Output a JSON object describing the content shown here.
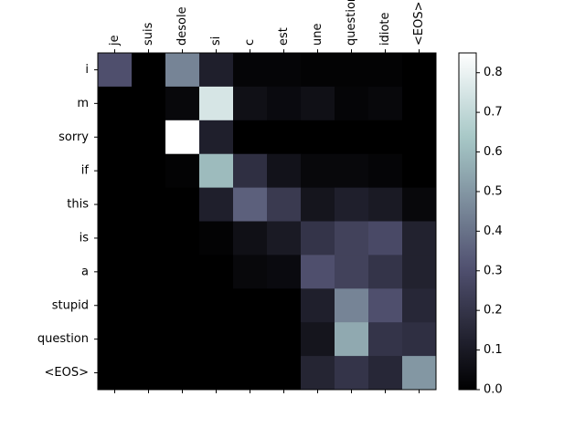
{
  "chart_data": {
    "type": "heatmap",
    "x_labels": [
      "je",
      "suis",
      "desole",
      "si",
      "c",
      "est",
      "une",
      "question",
      "idiote",
      "<EOS>"
    ],
    "y_labels": [
      "i",
      "m",
      "sorry",
      "if",
      "this",
      "is",
      "a",
      "stupid",
      "question",
      "<EOS>"
    ],
    "z": [
      [
        0.3,
        0.0,
        0.45,
        0.12,
        0.02,
        0.02,
        0.01,
        0.01,
        0.01,
        0.0
      ],
      [
        0.0,
        0.0,
        0.03,
        0.75,
        0.06,
        0.04,
        0.06,
        0.02,
        0.03,
        0.0
      ],
      [
        0.0,
        0.0,
        0.85,
        0.12,
        0.0,
        0.0,
        0.0,
        0.0,
        0.0,
        0.0
      ],
      [
        0.0,
        0.0,
        0.01,
        0.6,
        0.18,
        0.07,
        0.03,
        0.03,
        0.02,
        0.0
      ],
      [
        0.0,
        0.0,
        0.0,
        0.12,
        0.35,
        0.22,
        0.08,
        0.12,
        0.1,
        0.03
      ],
      [
        0.0,
        0.0,
        0.0,
        0.01,
        0.06,
        0.1,
        0.2,
        0.25,
        0.28,
        0.13
      ],
      [
        0.0,
        0.0,
        0.0,
        0.0,
        0.03,
        0.04,
        0.3,
        0.25,
        0.2,
        0.13
      ],
      [
        0.0,
        0.0,
        0.0,
        0.0,
        0.0,
        0.0,
        0.12,
        0.45,
        0.3,
        0.15
      ],
      [
        0.0,
        0.0,
        0.0,
        0.0,
        0.0,
        0.0,
        0.08,
        0.55,
        0.2,
        0.18
      ],
      [
        0.0,
        0.0,
        0.0,
        0.0,
        0.0,
        0.0,
        0.14,
        0.2,
        0.15,
        0.5
      ]
    ],
    "colormap": "bone",
    "clim": [
      0,
      0.85
    ],
    "cticks": [
      {
        "value": 0,
        "label": "0.0"
      },
      {
        "value": 0.1,
        "label": "0.1"
      },
      {
        "value": 0.2,
        "label": "0.2"
      },
      {
        "value": 0.3,
        "label": "0.3"
      },
      {
        "value": 0.4,
        "label": "0.4"
      },
      {
        "value": 0.5,
        "label": "0.5"
      },
      {
        "value": 0.6,
        "label": "0.6"
      },
      {
        "value": 0.7,
        "label": "0.7"
      },
      {
        "value": 0.8,
        "label": "0.8"
      }
    ]
  }
}
